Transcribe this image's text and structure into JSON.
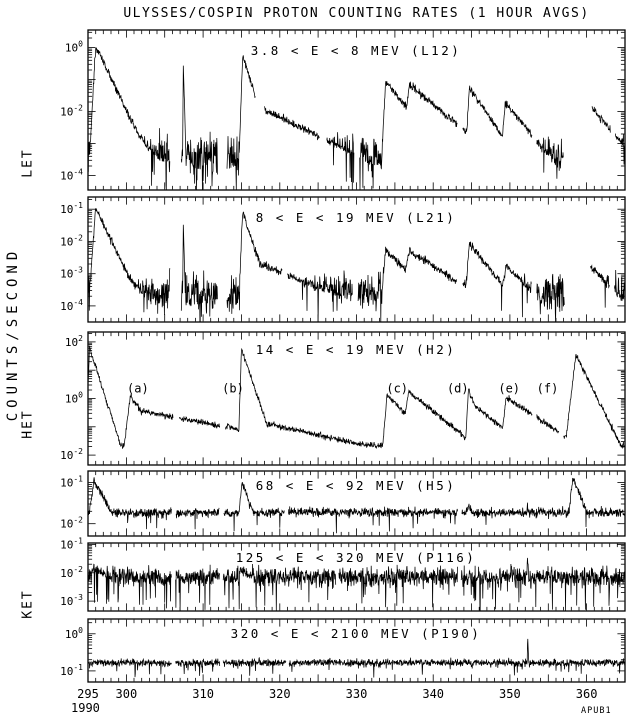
{
  "title": "ULYSSES/COSPIN PROTON COUNTING RATES (1 HOUR AVGS)",
  "footer": "APUB1",
  "labels": {
    "let_group": "LET",
    "y_axis": "COUNTS/SECOND",
    "het_group": "HET",
    "ket_group": "KET"
  },
  "x_axis": {
    "min": 295,
    "max": 365,
    "year_label": "1990",
    "minor_tick_days": 1,
    "major_tick_days": 5,
    "tick_labels": [
      "295",
      "300",
      "310",
      "320",
      "330",
      "340",
      "350",
      "360"
    ]
  },
  "chart_data": {
    "type": "line",
    "x_unit": "day of year 1990",
    "x_range": [
      295,
      365
    ],
    "cadence_hours": 1,
    "y_scale": "log10 counts/second",
    "panels": [
      {
        "code": "l12",
        "group": "LET",
        "label": "3.8 < E < 8 MEV (L12)",
        "ylim": [
          -4.45,
          0.55
        ],
        "ytick_exponents": [
          0,
          -2,
          -4
        ],
        "background": -3.4,
        "bg_noise": 0.33,
        "ev_noise": 0.06,
        "drop": [
          0.07,
          0.9
        ],
        "events": [
          {
            "onset": 295.2,
            "rise": 0.8,
            "peak": 0.05,
            "decay": 0.5
          },
          {
            "onset": 296.2,
            "rise": 1.5,
            "peak": -1.55,
            "decay": 0.3
          },
          {
            "onset": 307.35,
            "rise": 0.07,
            "peak": -0.35,
            "decay": 9
          },
          {
            "onset": 314.7,
            "rise": 0.45,
            "peak": -0.25,
            "decay": 0.75
          },
          {
            "onset": 315.3,
            "rise": 0.8,
            "peak": -1.7,
            "decay": 0.12
          },
          {
            "onset": 333.3,
            "rise": 0.5,
            "peak": -1.05,
            "decay": 0.3
          },
          {
            "onset": 335.7,
            "rise": 1.2,
            "peak": -1.15,
            "decay": 0.2
          },
          {
            "onset": 344.2,
            "rise": 0.5,
            "peak": -1.25,
            "decay": 0.35
          },
          {
            "onset": 348.8,
            "rise": 0.6,
            "peak": -1.7,
            "decay": 0.3
          },
          {
            "onset": 357.4,
            "rise": 1.2,
            "peak": -1.3,
            "decay": 0.28
          }
        ],
        "gaps": [
          [
            305.7,
            307.15
          ],
          [
            311.9,
            313.1
          ],
          [
            316.8,
            318.0
          ],
          [
            325.2,
            326.1
          ],
          [
            329.7,
            330.4
          ],
          [
            343.2,
            343.8
          ],
          [
            352.9,
            353.5
          ],
          [
            357.0,
            360.7
          ],
          [
            363.1,
            363.7
          ]
        ]
      },
      {
        "code": "l21",
        "group": "LET",
        "label": "8 < E < 19 MEV (L21)",
        "ylim": [
          -4.5,
          -0.62
        ],
        "ytick_exponents": [
          -1,
          -2,
          -3,
          -4
        ],
        "background": -3.62,
        "bg_noise": 0.28,
        "ev_noise": 0.06,
        "drop": [
          0.05,
          0.8
        ],
        "events": [
          {
            "onset": 295.2,
            "rise": 0.8,
            "peak": -0.95,
            "decay": 0.5
          },
          {
            "onset": 296.2,
            "rise": 1.5,
            "peak": -2.5,
            "decay": 0.25
          },
          {
            "onset": 307.35,
            "rise": 0.07,
            "peak": -1.35,
            "decay": 9
          },
          {
            "onset": 314.7,
            "rise": 0.45,
            "peak": -1.1,
            "decay": 0.7
          },
          {
            "onset": 315.3,
            "rise": 0.8,
            "peak": -2.55,
            "decay": 0.1
          },
          {
            "onset": 333.3,
            "rise": 0.5,
            "peak": -2.25,
            "decay": 0.25
          },
          {
            "onset": 335.7,
            "rise": 1.2,
            "peak": -2.3,
            "decay": 0.15
          },
          {
            "onset": 344.2,
            "rise": 0.5,
            "peak": -2.05,
            "decay": 0.3
          },
          {
            "onset": 348.9,
            "rise": 0.6,
            "peak": -2.75,
            "decay": 0.25
          },
          {
            "onset": 357.4,
            "rise": 1.2,
            "peak": -2.3,
            "decay": 0.25
          }
        ],
        "gaps": [
          [
            305.7,
            307.15
          ],
          [
            311.9,
            313.1
          ],
          [
            320.3,
            321.0
          ],
          [
            329.5,
            330.2
          ],
          [
            343.1,
            343.8
          ],
          [
            352.8,
            353.5
          ],
          [
            357.1,
            360.5
          ],
          [
            363.0,
            363.6
          ]
        ]
      },
      {
        "code": "h2",
        "group": "HET",
        "label": "14 < E < 19 MEV (H2)",
        "ylim": [
          -2.35,
          2.35
        ],
        "ytick_exponents": [
          2,
          0,
          -2
        ],
        "background": -1.68,
        "bg_noise": 0.07,
        "ev_noise": 0.05,
        "events": [
          {
            "onset": 294.7,
            "rise": 0.5,
            "peak": 1.8,
            "decay": 0.85
          },
          {
            "onset": 299.7,
            "rise": 0.8,
            "peak": 0.1,
            "decay": 0.4
          },
          {
            "onset": 300.5,
            "rise": 1.5,
            "peak": -0.45,
            "decay": 0.05
          },
          {
            "onset": 314.6,
            "rise": 0.4,
            "peak": 1.75,
            "decay": 0.8
          },
          {
            "onset": 315.2,
            "rise": 0.8,
            "peak": -0.75,
            "decay": 0.06
          },
          {
            "onset": 333.4,
            "rise": 0.6,
            "peak": 0.15,
            "decay": 0.3
          },
          {
            "onset": 335.7,
            "rise": 1.1,
            "peak": 0.25,
            "decay": 0.22
          },
          {
            "onset": 344.2,
            "rise": 0.4,
            "peak": 0.35,
            "decay": 0.8
          },
          {
            "onset": 344.7,
            "rise": 0.5,
            "peak": -0.2,
            "decay": 0.22
          },
          {
            "onset": 348.8,
            "rise": 0.7,
            "peak": 0.05,
            "decay": 0.18
          },
          {
            "onset": 357.2,
            "rise": 1.4,
            "peak": 1.55,
            "decay": 0.55
          }
        ],
        "gaps": [
          [
            306.1,
            306.9
          ],
          [
            312.2,
            312.9
          ],
          [
            352.9,
            353.5
          ],
          [
            356.4,
            357.0
          ]
        ],
        "annotation_log10_y": 0.35,
        "annotations": [
          {
            "text": "(a)",
            "day": 301.5
          },
          {
            "text": "(b)",
            "day": 313.9
          },
          {
            "text": "(c)",
            "day": 335.3
          },
          {
            "text": "(d)",
            "day": 343.2
          },
          {
            "text": "(e)",
            "day": 349.9
          },
          {
            "text": "(f)",
            "day": 354.9
          }
        ]
      },
      {
        "code": "h5",
        "group": "HET",
        "label": "68 < E < 92 MEV (H5)",
        "ylim": [
          -2.3,
          -0.72
        ],
        "ytick_exponents": [
          -1,
          -2
        ],
        "background": -1.73,
        "bg_noise": 0.055,
        "ev_noise": 0.05,
        "drop": [
          0.015,
          0.3
        ],
        "events": [
          {
            "onset": 295.2,
            "rise": 0.6,
            "peak": -0.95,
            "decay": 0.35
          },
          {
            "onset": 314.7,
            "rise": 0.35,
            "peak": -1.0,
            "decay": 0.5
          },
          {
            "onset": 344.3,
            "rise": 0.3,
            "peak": -1.5,
            "decay": 0.6
          },
          {
            "onset": 352.2,
            "rise": 0.08,
            "peak": -1.45,
            "decay": 4
          },
          {
            "onset": 357.7,
            "rise": 0.5,
            "peak": -0.9,
            "decay": 0.45
          }
        ],
        "gaps": [
          [
            305.9,
            306.5
          ],
          [
            312.1,
            312.7
          ],
          [
            320.6,
            321.1
          ],
          [
            343.2,
            343.7
          ]
        ]
      },
      {
        "code": "p116",
        "group": "KET",
        "label": "125 < E < 320 MEV (P116)",
        "ylim": [
          -3.35,
          -0.95
        ],
        "ytick_exponents": [
          -1,
          -2,
          -3
        ],
        "background": -2.15,
        "bg_noise": 0.17,
        "ev_noise": 0.08,
        "drop": [
          0.05,
          0.8
        ],
        "events": [
          {
            "onset": 295.2,
            "rise": 0.6,
            "peak": -1.8,
            "decay": 0.25
          },
          {
            "onset": 314.7,
            "rise": 0.4,
            "peak": -1.85,
            "decay": 0.4
          },
          {
            "onset": 352.2,
            "rise": 0.07,
            "peak": -1.3,
            "decay": 5
          }
        ],
        "gaps": [
          [
            305.9,
            306.4
          ],
          [
            312.2,
            312.6
          ],
          [
            327.3,
            327.7
          ],
          [
            343.2,
            343.6
          ]
        ]
      },
      {
        "code": "p190",
        "group": "KET",
        "label": "320 < E < 2100 MEV (P190)",
        "ylim": [
          -1.3,
          0.4
        ],
        "ytick_exponents": [
          0,
          -1
        ],
        "background": -0.78,
        "bg_noise": 0.05,
        "ev_noise": 0.05,
        "drop": [
          0.02,
          0.25
        ],
        "events": [
          {
            "onset": 352.25,
            "rise": 0.06,
            "peak": -0.05,
            "decay": 5
          }
        ],
        "gaps": [
          [
            305.9,
            306.4
          ],
          [
            312.2,
            312.6
          ],
          [
            320.8,
            321.2
          ]
        ]
      }
    ]
  }
}
